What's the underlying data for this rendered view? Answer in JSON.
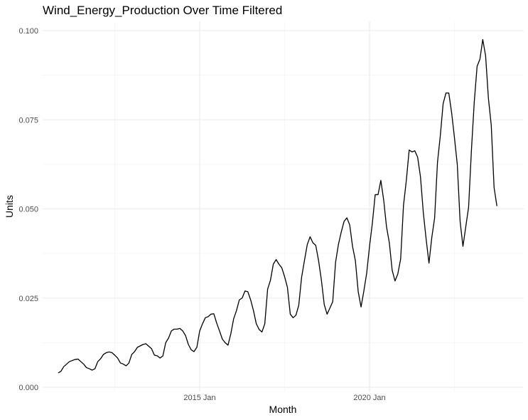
{
  "chart_data": {
    "type": "line",
    "title": "Wind_Energy_Production Over Time Filtered",
    "xlabel": "Month",
    "ylabel": "Units",
    "ylim": [
      0,
      0.1
    ],
    "grid": true,
    "legend": "none",
    "y_ticks": [
      "0.000",
      "0.025",
      "0.050",
      "0.075",
      "0.100"
    ],
    "x_ticks": [
      {
        "label": "2015 Jan",
        "date": "2015-01"
      },
      {
        "label": "2020 Jan",
        "date": "2020-01"
      }
    ],
    "x_minor_gridlines": [
      "2012-07",
      "2017-07",
      "2022-07"
    ],
    "series": [
      {
        "color": "#000000",
        "points": [
          [
            "2010-11",
            0.004
          ],
          [
            "2010-12",
            0.0045
          ],
          [
            "2011-01",
            0.0058
          ],
          [
            "2011-02",
            0.0065
          ],
          [
            "2011-03",
            0.0072
          ],
          [
            "2011-04",
            0.0075
          ],
          [
            "2011-05",
            0.0078
          ],
          [
            "2011-06",
            0.0079
          ],
          [
            "2011-07",
            0.0072
          ],
          [
            "2011-08",
            0.0065
          ],
          [
            "2011-09",
            0.0055
          ],
          [
            "2011-10",
            0.0052
          ],
          [
            "2011-11",
            0.0048
          ],
          [
            "2011-12",
            0.0052
          ],
          [
            "2012-01",
            0.0072
          ],
          [
            "2012-02",
            0.008
          ],
          [
            "2012-03",
            0.0092
          ],
          [
            "2012-04",
            0.0097
          ],
          [
            "2012-05",
            0.0099
          ],
          [
            "2012-06",
            0.0097
          ],
          [
            "2012-07",
            0.009
          ],
          [
            "2012-08",
            0.0082
          ],
          [
            "2012-09",
            0.0068
          ],
          [
            "2012-10",
            0.0065
          ],
          [
            "2012-11",
            0.006
          ],
          [
            "2012-12",
            0.0068
          ],
          [
            "2013-01",
            0.0092
          ],
          [
            "2013-02",
            0.01
          ],
          [
            "2013-03",
            0.0112
          ],
          [
            "2013-04",
            0.0116
          ],
          [
            "2013-05",
            0.012
          ],
          [
            "2013-06",
            0.0122
          ],
          [
            "2013-07",
            0.0115
          ],
          [
            "2013-08",
            0.0108
          ],
          [
            "2013-09",
            0.009
          ],
          [
            "2013-10",
            0.0088
          ],
          [
            "2013-11",
            0.0082
          ],
          [
            "2013-12",
            0.0088
          ],
          [
            "2014-01",
            0.0125
          ],
          [
            "2014-02",
            0.0138
          ],
          [
            "2014-03",
            0.0158
          ],
          [
            "2014-04",
            0.0163
          ],
          [
            "2014-05",
            0.0163
          ],
          [
            "2014-06",
            0.0165
          ],
          [
            "2014-07",
            0.0158
          ],
          [
            "2014-08",
            0.0145
          ],
          [
            "2014-09",
            0.012
          ],
          [
            "2014-10",
            0.0105
          ],
          [
            "2014-11",
            0.01
          ],
          [
            "2014-12",
            0.0112
          ],
          [
            "2015-01",
            0.0158
          ],
          [
            "2015-02",
            0.0178
          ],
          [
            "2015-03",
            0.0195
          ],
          [
            "2015-04",
            0.0198
          ],
          [
            "2015-05",
            0.0205
          ],
          [
            "2015-06",
            0.0206
          ],
          [
            "2015-07",
            0.018
          ],
          [
            "2015-08",
            0.0158
          ],
          [
            "2015-09",
            0.0135
          ],
          [
            "2015-10",
            0.0125
          ],
          [
            "2015-11",
            0.0118
          ],
          [
            "2015-12",
            0.015
          ],
          [
            "2016-01",
            0.0192
          ],
          [
            "2016-02",
            0.0215
          ],
          [
            "2016-03",
            0.0245
          ],
          [
            "2016-04",
            0.025
          ],
          [
            "2016-05",
            0.027
          ],
          [
            "2016-06",
            0.0268
          ],
          [
            "2016-07",
            0.0245
          ],
          [
            "2016-08",
            0.0215
          ],
          [
            "2016-09",
            0.0178
          ],
          [
            "2016-10",
            0.0162
          ],
          [
            "2016-11",
            0.0155
          ],
          [
            "2016-12",
            0.0178
          ],
          [
            "2017-01",
            0.0275
          ],
          [
            "2017-02",
            0.03
          ],
          [
            "2017-03",
            0.0345
          ],
          [
            "2017-04",
            0.0358
          ],
          [
            "2017-05",
            0.0345
          ],
          [
            "2017-06",
            0.0335
          ],
          [
            "2017-07",
            0.031
          ],
          [
            "2017-08",
            0.028
          ],
          [
            "2017-09",
            0.0205
          ],
          [
            "2017-10",
            0.0195
          ],
          [
            "2017-11",
            0.0202
          ],
          [
            "2017-12",
            0.023
          ],
          [
            "2018-01",
            0.0308
          ],
          [
            "2018-02",
            0.0355
          ],
          [
            "2018-03",
            0.04
          ],
          [
            "2018-04",
            0.0422
          ],
          [
            "2018-05",
            0.0405
          ],
          [
            "2018-06",
            0.0398
          ],
          [
            "2018-07",
            0.0355
          ],
          [
            "2018-08",
            0.03
          ],
          [
            "2018-09",
            0.0232
          ],
          [
            "2018-10",
            0.0205
          ],
          [
            "2018-11",
            0.0222
          ],
          [
            "2018-12",
            0.024
          ],
          [
            "2019-01",
            0.035
          ],
          [
            "2019-02",
            0.04
          ],
          [
            "2019-03",
            0.0435
          ],
          [
            "2019-04",
            0.0465
          ],
          [
            "2019-05",
            0.0475
          ],
          [
            "2019-06",
            0.0455
          ],
          [
            "2019-07",
            0.0395
          ],
          [
            "2019-08",
            0.0355
          ],
          [
            "2019-09",
            0.0268
          ],
          [
            "2019-10",
            0.0225
          ],
          [
            "2019-11",
            0.027
          ],
          [
            "2019-12",
            0.032
          ],
          [
            "2020-01",
            0.0395
          ],
          [
            "2020-02",
            0.046
          ],
          [
            "2020-03",
            0.054
          ],
          [
            "2020-04",
            0.054
          ],
          [
            "2020-05",
            0.058
          ],
          [
            "2020-06",
            0.0525
          ],
          [
            "2020-07",
            0.045
          ],
          [
            "2020-08",
            0.0405
          ],
          [
            "2020-09",
            0.0328
          ],
          [
            "2020-10",
            0.0298
          ],
          [
            "2020-11",
            0.0318
          ],
          [
            "2020-12",
            0.036
          ],
          [
            "2021-01",
            0.051
          ],
          [
            "2021-02",
            0.058
          ],
          [
            "2021-03",
            0.0665
          ],
          [
            "2021-04",
            0.066
          ],
          [
            "2021-05",
            0.0663
          ],
          [
            "2021-06",
            0.0645
          ],
          [
            "2021-07",
            0.059
          ],
          [
            "2021-08",
            0.049
          ],
          [
            "2021-09",
            0.0415
          ],
          [
            "2021-10",
            0.0348
          ],
          [
            "2021-11",
            0.042
          ],
          [
            "2021-12",
            0.0475
          ],
          [
            "2022-01",
            0.063
          ],
          [
            "2022-02",
            0.0705
          ],
          [
            "2022-03",
            0.0795
          ],
          [
            "2022-04",
            0.0825
          ],
          [
            "2022-05",
            0.0825
          ],
          [
            "2022-06",
            0.077
          ],
          [
            "2022-07",
            0.07
          ],
          [
            "2022-08",
            0.0625
          ],
          [
            "2022-09",
            0.0465
          ],
          [
            "2022-10",
            0.0395
          ],
          [
            "2022-11",
            0.045
          ],
          [
            "2022-12",
            0.0505
          ],
          [
            "2023-01",
            0.0665
          ],
          [
            "2023-02",
            0.08
          ],
          [
            "2023-03",
            0.09
          ],
          [
            "2023-04",
            0.092
          ],
          [
            "2023-05",
            0.0975
          ],
          [
            "2023-06",
            0.093
          ],
          [
            "2023-07",
            0.081
          ],
          [
            "2023-08",
            0.0735
          ],
          [
            "2023-09",
            0.056
          ],
          [
            "2023-10",
            0.0508
          ]
        ]
      }
    ]
  }
}
